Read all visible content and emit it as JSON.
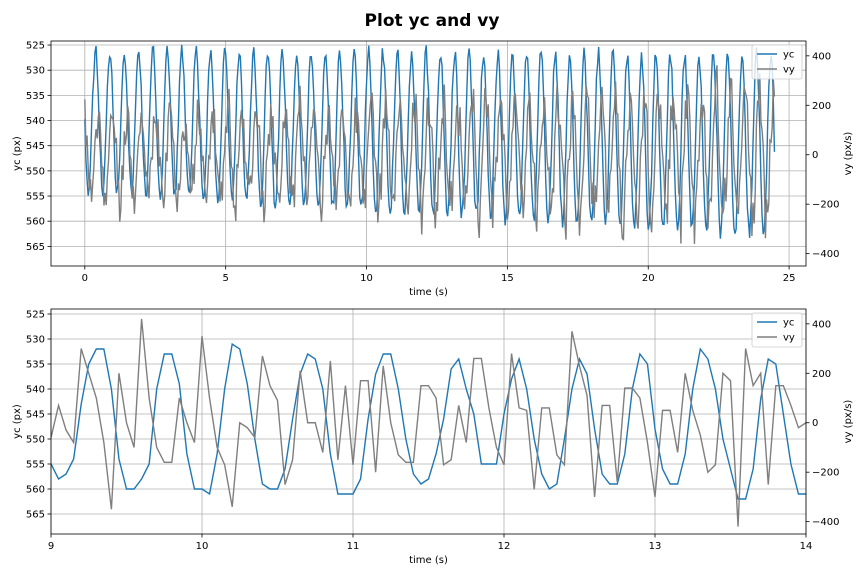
{
  "figure": {
    "title": "Plot yc and vy"
  },
  "colors": {
    "yc": "#1f77b4",
    "vy": "#7f7f7f",
    "grid": "#b0b0b0"
  },
  "chart_data": [
    {
      "type": "line",
      "x_mode": "full",
      "xlabel": "time (s)",
      "ylabel": "yc (px)",
      "ylabel_right": "vy (px/s)",
      "xlim": [
        -1.2,
        25.6
      ],
      "ylim": [
        568.9,
        524.2
      ],
      "ylim_right": [
        -450,
        460
      ],
      "xticks": [
        0,
        5,
        10,
        15,
        20,
        25
      ],
      "yticks": [
        525,
        530,
        535,
        540,
        545,
        550,
        555,
        560,
        565
      ],
      "yticks_right": [
        -400,
        -200,
        0,
        200,
        400
      ],
      "grid": true,
      "legend": "top-right",
      "series": [
        {
          "name": "yc",
          "axis": "left",
          "color": "#1f77b4",
          "x_start": 0,
          "x_end": 24.5,
          "period_s": 0.51,
          "center_start": 540,
          "center_end": 545,
          "amplitude_start": 14,
          "amplitude_end": 18
        },
        {
          "name": "vy",
          "axis": "right",
          "color": "#7f7f7f",
          "x_start": 0,
          "x_end": 24.5,
          "period_s": 0.51,
          "amplitude_start": 180,
          "amplitude_end": 300
        }
      ]
    },
    {
      "type": "line",
      "x_mode": "zoom",
      "xlabel": "time (s)",
      "ylabel": "yc (px)",
      "ylabel_right": "vy (px/s)",
      "xlim": [
        9,
        14
      ],
      "ylim": [
        569,
        524
      ],
      "ylim_right": [
        -450,
        460
      ],
      "xticks": [
        9,
        10,
        11,
        12,
        13,
        14
      ],
      "yticks": [
        525,
        530,
        535,
        540,
        545,
        550,
        555,
        560,
        565
      ],
      "yticks_right": [
        -400,
        -200,
        0,
        200,
        400
      ],
      "grid": true,
      "legend": "top-right",
      "series": [
        {
          "name": "yc",
          "axis": "left",
          "color": "#1f77b4",
          "x": [
            9.0,
            9.05,
            9.1,
            9.15,
            9.2,
            9.25,
            9.3,
            9.35,
            9.4,
            9.45,
            9.5,
            9.55,
            9.6,
            9.65,
            9.7,
            9.75,
            9.8,
            9.85,
            9.9,
            9.95,
            10.0,
            10.05,
            10.1,
            10.15,
            10.2,
            10.25,
            10.3,
            10.35,
            10.4,
            10.45,
            10.5,
            10.55,
            10.6,
            10.65,
            10.7,
            10.75,
            10.8,
            10.85,
            10.9,
            10.95,
            11.0,
            11.05,
            11.1,
            11.15,
            11.2,
            11.25,
            11.3,
            11.35,
            11.4,
            11.45,
            11.5,
            11.55,
            11.6,
            11.65,
            11.7,
            11.75,
            11.8,
            11.85,
            11.9,
            11.95,
            12.0,
            12.05,
            12.1,
            12.15,
            12.2,
            12.25,
            12.3,
            12.35,
            12.4,
            12.45,
            12.5,
            12.55,
            12.6,
            12.65,
            12.7,
            12.75,
            12.8,
            12.85,
            12.9,
            12.95,
            13.0,
            13.05,
            13.1,
            13.15,
            13.2,
            13.25,
            13.3,
            13.35,
            13.4,
            13.45,
            13.5,
            13.55,
            13.6,
            13.65,
            13.7,
            13.75,
            13.8,
            13.85,
            13.9,
            13.95,
            14.0
          ],
          "values": [
            555,
            558,
            557,
            554,
            543,
            535,
            532,
            532,
            540,
            554,
            560,
            560,
            558,
            555,
            540,
            533,
            533,
            539,
            553,
            560,
            560,
            561,
            553,
            540,
            531,
            532,
            539,
            550,
            559,
            560,
            560,
            556,
            546,
            537,
            533,
            534,
            540,
            553,
            561,
            561,
            561,
            558,
            546,
            537,
            533,
            533,
            540,
            550,
            557,
            559,
            558,
            553,
            546,
            536,
            534,
            540,
            545,
            555,
            555,
            555,
            545,
            538,
            534,
            540,
            550,
            557,
            560,
            559,
            550,
            540,
            534,
            537,
            548,
            557,
            559,
            559,
            553,
            540,
            533,
            535,
            548,
            556,
            559,
            559,
            553,
            540,
            532,
            534,
            540,
            550,
            556,
            562,
            562,
            556,
            542,
            534,
            535,
            545,
            555,
            561,
            561
          ]
        },
        {
          "name": "vy",
          "axis": "right",
          "color": "#7f7f7f",
          "x": [
            9.0,
            9.05,
            9.1,
            9.15,
            9.2,
            9.25,
            9.3,
            9.35,
            9.4,
            9.45,
            9.5,
            9.55,
            9.6,
            9.65,
            9.7,
            9.75,
            9.8,
            9.85,
            9.9,
            9.95,
            10.0,
            10.05,
            10.1,
            10.15,
            10.2,
            10.25,
            10.3,
            10.35,
            10.4,
            10.45,
            10.5,
            10.55,
            10.6,
            10.65,
            10.7,
            10.75,
            10.8,
            10.85,
            10.9,
            10.95,
            11.0,
            11.05,
            11.1,
            11.15,
            11.2,
            11.25,
            11.3,
            11.35,
            11.4,
            11.45,
            11.5,
            11.55,
            11.6,
            11.65,
            11.7,
            11.75,
            11.8,
            11.85,
            11.9,
            11.95,
            12.0,
            12.05,
            12.1,
            12.15,
            12.2,
            12.25,
            12.3,
            12.35,
            12.4,
            12.45,
            12.5,
            12.55,
            12.6,
            12.65,
            12.7,
            12.75,
            12.8,
            12.85,
            12.9,
            12.95,
            13.0,
            13.05,
            13.1,
            13.15,
            13.2,
            13.25,
            13.3,
            13.35,
            13.4,
            13.45,
            13.5,
            13.55,
            13.6,
            13.65,
            13.7,
            13.75,
            13.8,
            13.85,
            13.9,
            13.95,
            14.0
          ],
          "values": [
            -60,
            70,
            -30,
            -80,
            300,
            200,
            100,
            -80,
            -350,
            200,
            0,
            -100,
            420,
            100,
            -100,
            -160,
            -160,
            100,
            0,
            -80,
            350,
            100,
            -100,
            -170,
            -340,
            0,
            -20,
            -60,
            270,
            150,
            90,
            -250,
            -150,
            210,
            0,
            0,
            -120,
            250,
            -150,
            150,
            -170,
            170,
            170,
            -200,
            230,
            0,
            -130,
            -160,
            -160,
            150,
            150,
            100,
            -170,
            -150,
            70,
            -80,
            260,
            260,
            60,
            -100,
            -170,
            280,
            60,
            50,
            -270,
            60,
            60,
            -130,
            -170,
            370,
            230,
            110,
            -300,
            70,
            70,
            -240,
            140,
            140,
            100,
            -80,
            -300,
            50,
            50,
            -120,
            200,
            50,
            -50,
            -200,
            -170,
            200,
            170,
            -420,
            300,
            150,
            200,
            -250,
            150,
            150,
            70,
            -20,
            0
          ]
        }
      ]
    }
  ]
}
